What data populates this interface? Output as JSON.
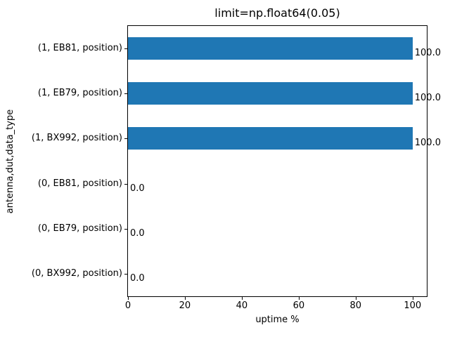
{
  "chart_data": {
    "type": "bar",
    "orientation": "horizontal",
    "title": "limit=np.float64(0.05)",
    "xlabel": "uptime %",
    "ylabel": "antenna,dut,data_type",
    "categories": [
      "(1, EB81, position)",
      "(1, EB79, position)",
      "(1, BX992, position)",
      "(0, EB81, position)",
      "(0, EB79, position)",
      "(0, BX992, position)"
    ],
    "values": [
      100.0,
      100.0,
      100.0,
      0.0,
      0.0,
      0.0
    ],
    "bar_labels": [
      "100.0",
      "100.0",
      "100.0",
      "0.0",
      "0.0",
      "0.0"
    ],
    "xticks": [
      "0",
      "20",
      "40",
      "60",
      "80",
      "100"
    ],
    "xtick_values": [
      0,
      20,
      40,
      60,
      80,
      100
    ],
    "xlim": [
      0,
      105
    ],
    "bar_color": "#1f77b4",
    "grid": false,
    "legend_position": "none"
  }
}
